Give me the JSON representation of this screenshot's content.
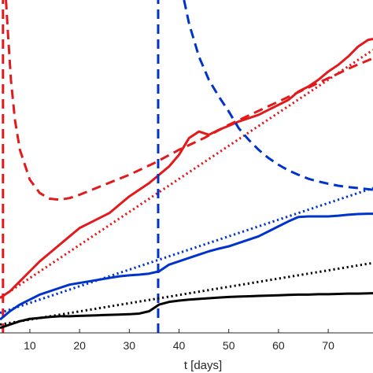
{
  "chart_data": {
    "type": "line",
    "title": "",
    "xlabel": "t [days]",
    "ylabel": "",
    "xlim": [
      4,
      79
    ],
    "ylim": [
      0,
      100
    ],
    "grid": false,
    "legend": "none",
    "x_ticks": [
      10,
      20,
      30,
      40,
      50,
      60,
      70
    ],
    "x_tick_labels": [
      "10",
      "20",
      "30",
      "40",
      "50",
      "60",
      "70"
    ],
    "series": [
      {
        "color": "#e31a1c",
        "style": "solid",
        "x": [
          4,
          6,
          8,
          10,
          12,
          14,
          16,
          18,
          20,
          22,
          24,
          26,
          28,
          30,
          32,
          34,
          36,
          38,
          40,
          42,
          44,
          46,
          48,
          50,
          52,
          54,
          56,
          58,
          60,
          62,
          64,
          66,
          68,
          70,
          72,
          74,
          76,
          78,
          79
        ],
        "y": [
          10.5,
          12.5,
          15.5,
          18.5,
          21.5,
          24,
          26.5,
          29,
          31.5,
          33,
          34.5,
          36,
          38.5,
          41,
          43,
          45,
          47.5,
          50,
          53.5,
          58.5,
          60.5,
          59.5,
          61,
          62.2,
          63.5,
          64.5,
          65.5,
          67,
          68.5,
          70,
          72.5,
          74,
          76,
          78.5,
          80.5,
          83,
          86,
          88,
          88.3
        ]
      },
      {
        "color": "#e31a1c",
        "style": "dashed",
        "x": [
          5.2,
          5.6,
          6.2,
          7,
          8,
          10,
          12,
          14,
          16,
          18,
          20,
          25,
          30,
          35,
          40,
          45,
          50,
          55,
          60,
          65,
          70,
          75,
          79
        ],
        "y": [
          100,
          90,
          76,
          64,
          55,
          46,
          42,
          40.3,
          40,
          40.5,
          41.5,
          44.5,
          47.5,
          51,
          55,
          58.5,
          62.5,
          66,
          69.5,
          73,
          76.5,
          80,
          82.5
        ]
      },
      {
        "color": "#e31a1c",
        "style": "dotted",
        "x": [
          4,
          79
        ],
        "y": [
          10.5,
          85
        ]
      },
      {
        "color": "#e31a1c",
        "style": "dashed",
        "x": [
          4.6,
          4.6
        ],
        "y": [
          0,
          100
        ]
      },
      {
        "color": "#0033cc",
        "style": "solid",
        "x": [
          4,
          6,
          8,
          10,
          12,
          14,
          16,
          18,
          20,
          22,
          24,
          26,
          28,
          30,
          32,
          34,
          36,
          38,
          40,
          42,
          44,
          46,
          48,
          50,
          52,
          54,
          56,
          58,
          60,
          62,
          64,
          66,
          68,
          70,
          72,
          74,
          76,
          78,
          79
        ],
        "y": [
          4,
          6.5,
          8.5,
          10,
          11.5,
          12.5,
          13.5,
          14.5,
          15,
          15.5,
          16,
          16.5,
          17,
          17.3,
          17.5,
          17.8,
          18.5,
          20.5,
          21.5,
          22.5,
          23.5,
          24.5,
          25.3,
          26,
          27,
          28,
          29,
          30.5,
          32,
          33.5,
          34.8,
          35,
          35,
          35,
          35.2,
          35.5,
          35.7,
          35.8,
          35.8
        ]
      },
      {
        "color": "#0033cc",
        "style": "dashed",
        "x": [
          41,
          42,
          44,
          46,
          48,
          50,
          52,
          54,
          56,
          58,
          60,
          62,
          64,
          66,
          68,
          70,
          72,
          74,
          76,
          79
        ],
        "y": [
          100,
          93,
          83,
          76,
          71,
          66.5,
          61.5,
          58,
          55,
          52.5,
          50.5,
          48.8,
          47.5,
          46.3,
          45.5,
          44.8,
          44.2,
          43.8,
          43.5,
          43
        ]
      },
      {
        "color": "#0033cc",
        "style": "dotted",
        "x": [
          4,
          79
        ],
        "y": [
          6,
          43.5
        ]
      },
      {
        "color": "#0033cc",
        "style": "dashed",
        "x": [
          35.8,
          35.8
        ],
        "y": [
          0,
          100
        ]
      },
      {
        "color": "#000000",
        "style": "solid",
        "x": [
          4,
          6,
          8,
          10,
          12,
          14,
          16,
          18,
          20,
          22,
          24,
          26,
          28,
          30,
          32,
          34,
          36,
          38,
          40,
          42,
          44,
          46,
          48,
          50,
          52,
          54,
          56,
          58,
          60,
          62,
          64,
          66,
          68,
          70,
          72,
          74,
          76,
          79
        ],
        "y": [
          1.5,
          2.5,
          3.5,
          4.2,
          4.5,
          4.8,
          5,
          5,
          5.1,
          5.2,
          5.3,
          5.4,
          5.5,
          5.6,
          5.8,
          6.5,
          8.5,
          9.3,
          9.7,
          10,
          10.2,
          10.4,
          10.6,
          10.8,
          10.9,
          11,
          11.1,
          11.2,
          11.3,
          11.4,
          11.5,
          11.5,
          11.6,
          11.6,
          11.7,
          11.8,
          11.8,
          11.9
        ]
      },
      {
        "color": "#000000",
        "style": "dotted",
        "x": [
          4,
          79
        ],
        "y": [
          2.5,
          21
        ]
      }
    ]
  }
}
